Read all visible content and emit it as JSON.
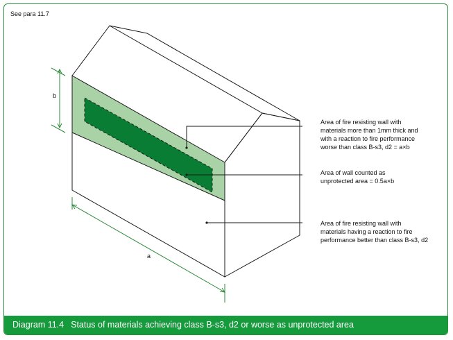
{
  "reference": "See para 11.7",
  "dimensions": {
    "height_label": "b",
    "length_label": "a"
  },
  "callouts": [
    {
      "lines": [
        "Area of fire resisting wall with",
        "materials more than 1mm thick and",
        "with a reaction to fire performance",
        "worse than class B-s3, d2 = a×b"
      ]
    },
    {
      "lines": [
        "Area of wall counted as",
        "unprotected area = 0.5a×b"
      ]
    },
    {
      "lines": [
        "Area of fire resisting wall with",
        "materials having a reaction to fire",
        "performance better than class B-s3, d2"
      ]
    }
  ],
  "caption": {
    "number": "Diagram 11.4",
    "text": "Status of materials achieving class B-s3, d2 or worse as unprotected area"
  },
  "colors": {
    "green_dark": "#0a7d34",
    "green_light": "#a9d2a6",
    "caption_bg": "#169b3c",
    "dimension": "#2d8a3a"
  }
}
